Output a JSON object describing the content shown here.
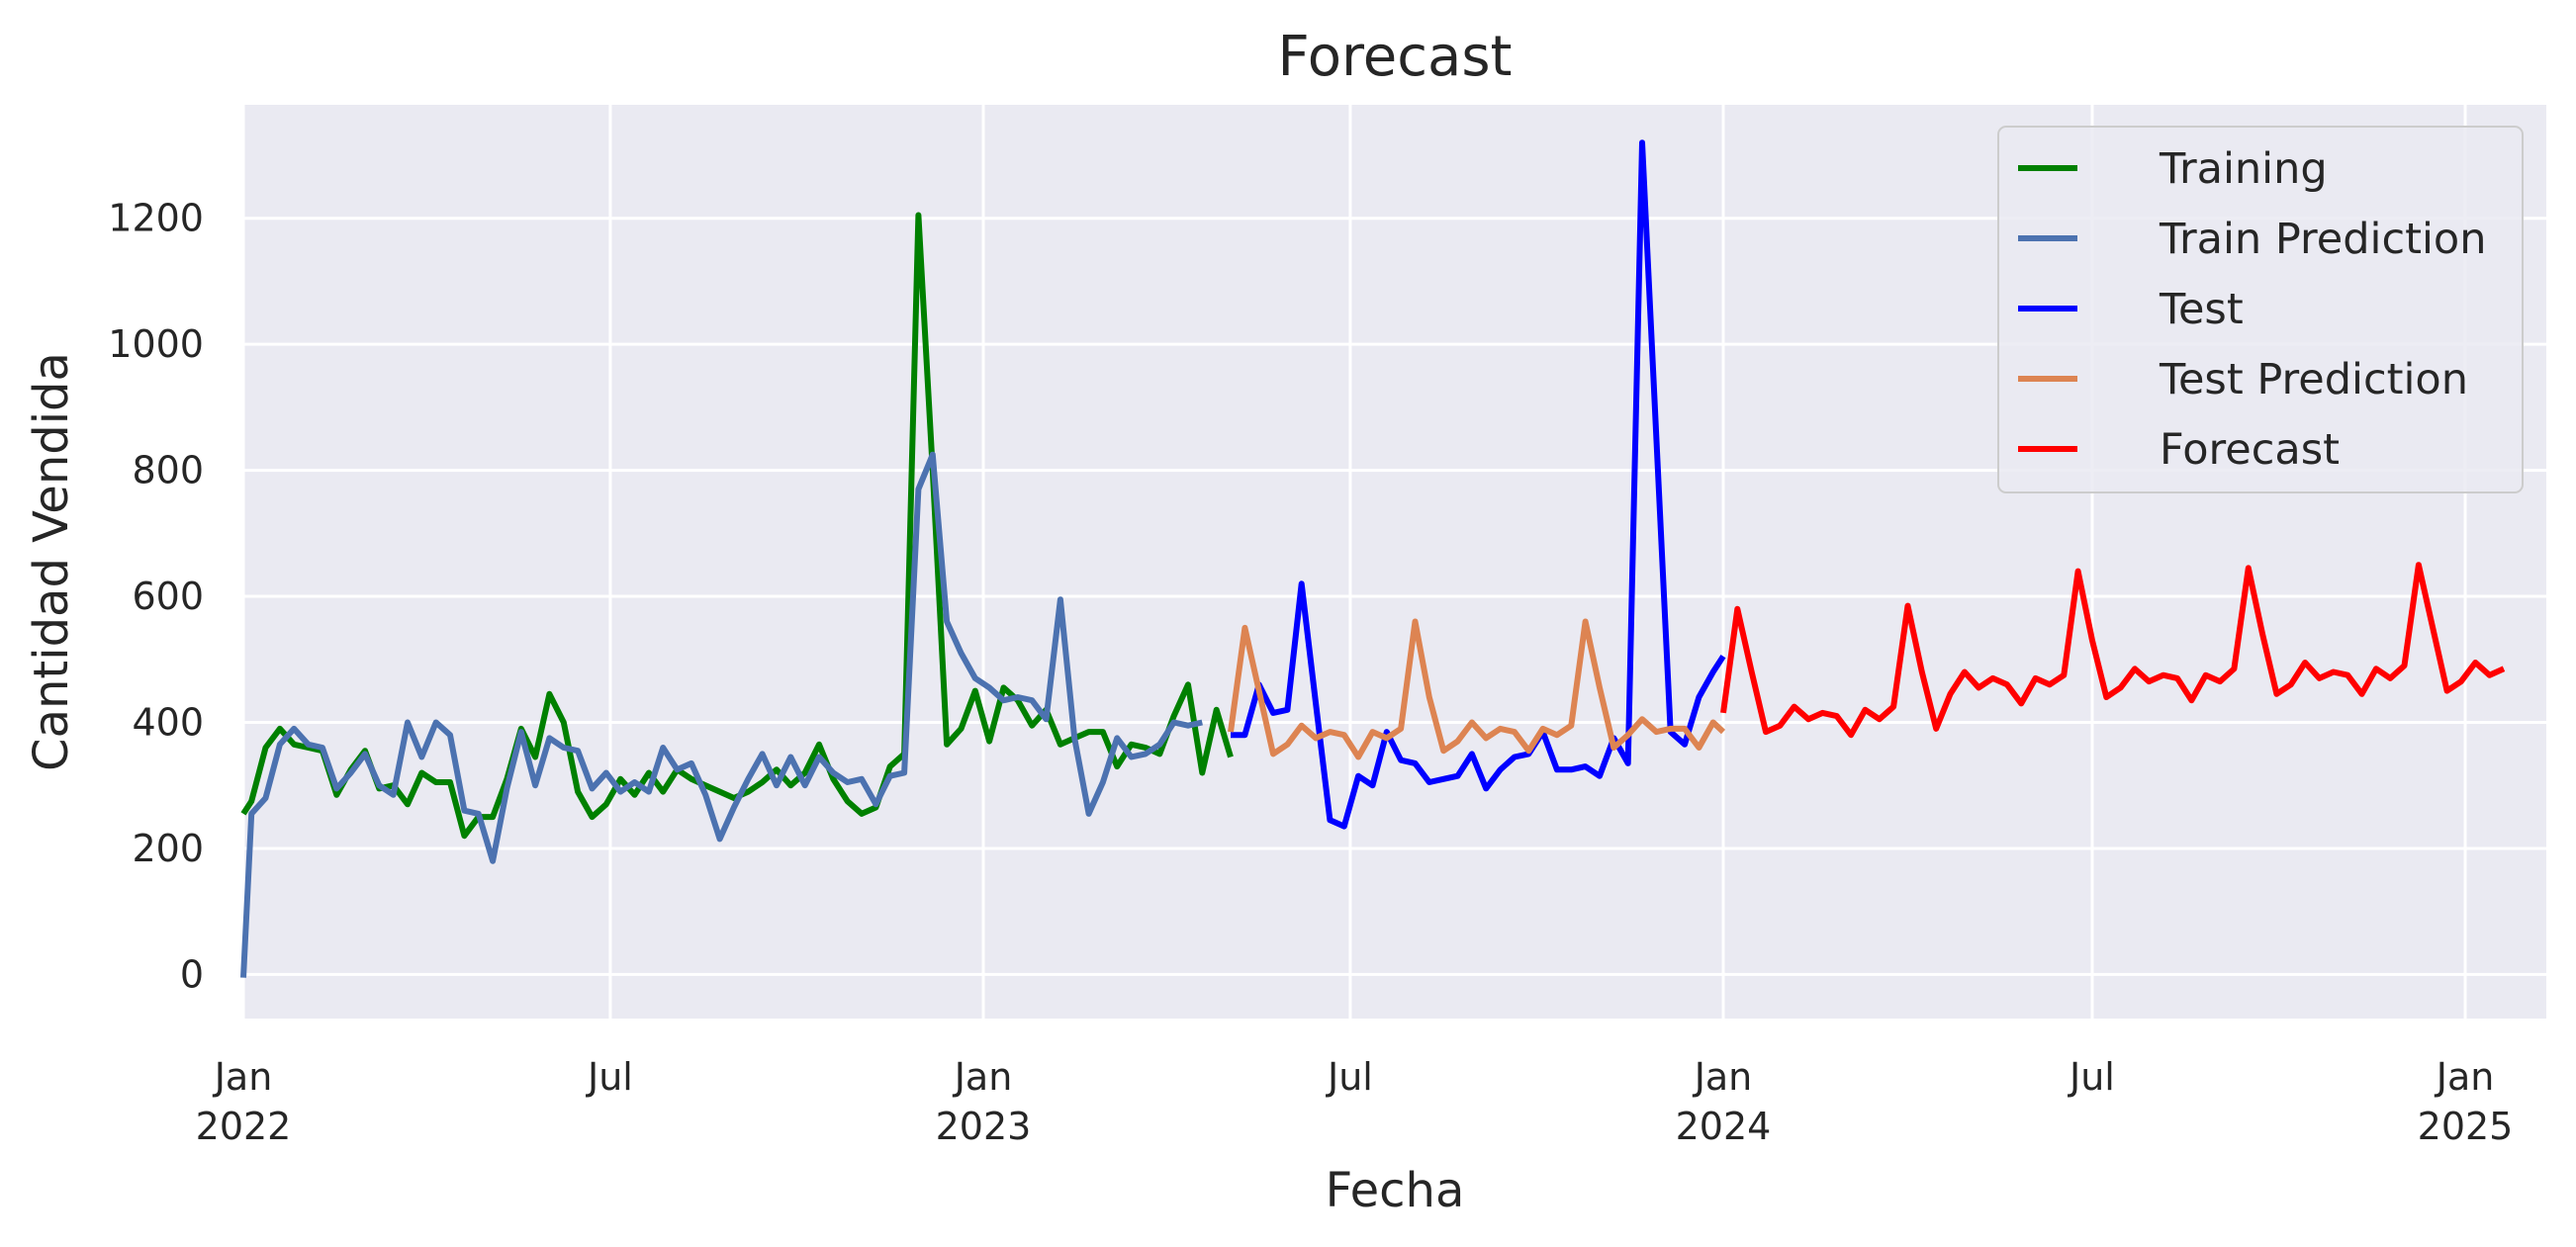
{
  "chart_data": {
    "type": "line",
    "title": "Forecast",
    "xlabel": "Fecha",
    "ylabel": "Cantidad Vendida",
    "xlim": [
      "2022-01-01",
      "2025-02-10"
    ],
    "ylim": [
      -70,
      1380
    ],
    "grid": true,
    "legend_position": "top-right",
    "y_ticks": [
      0,
      200,
      400,
      600,
      800,
      1000,
      1200
    ],
    "x_ticks": [
      {
        "date": "2022-01-01",
        "label": "Jan",
        "year": "2022"
      },
      {
        "date": "2022-07-01",
        "label": "Jul",
        "year": ""
      },
      {
        "date": "2023-01-01",
        "label": "Jan",
        "year": "2023"
      },
      {
        "date": "2023-07-01",
        "label": "Jul",
        "year": ""
      },
      {
        "date": "2024-01-01",
        "label": "Jan",
        "year": "2024"
      },
      {
        "date": "2024-07-01",
        "label": "Jul",
        "year": ""
      },
      {
        "date": "2025-01-01",
        "label": "Jan",
        "year": "2025"
      }
    ],
    "colors": {
      "plot_background": "#eaeaf2",
      "grid": "#ffffff",
      "text": "#262626"
    },
    "series": [
      {
        "name": "Training",
        "color": "#008000",
        "points": [
          [
            "2022-01-01",
            255
          ],
          [
            "2022-01-05",
            275
          ],
          [
            "2022-01-12",
            360
          ],
          [
            "2022-01-19",
            390
          ],
          [
            "2022-01-26",
            365
          ],
          [
            "2022-02-02",
            360
          ],
          [
            "2022-02-09",
            355
          ],
          [
            "2022-02-16",
            285
          ],
          [
            "2022-02-23",
            325
          ],
          [
            "2022-03-02",
            355
          ],
          [
            "2022-03-09",
            295
          ],
          [
            "2022-03-16",
            300
          ],
          [
            "2022-03-23",
            270
          ],
          [
            "2022-03-30",
            320
          ],
          [
            "2022-04-06",
            305
          ],
          [
            "2022-04-13",
            305
          ],
          [
            "2022-04-20",
            220
          ],
          [
            "2022-04-27",
            250
          ],
          [
            "2022-05-04",
            250
          ],
          [
            "2022-05-11",
            310
          ],
          [
            "2022-05-18",
            390
          ],
          [
            "2022-05-25",
            345
          ],
          [
            "2022-06-01",
            445
          ],
          [
            "2022-06-08",
            400
          ],
          [
            "2022-06-15",
            290
          ],
          [
            "2022-06-22",
            250
          ],
          [
            "2022-06-29",
            270
          ],
          [
            "2022-07-06",
            310
          ],
          [
            "2022-07-13",
            285
          ],
          [
            "2022-07-20",
            320
          ],
          [
            "2022-07-27",
            290
          ],
          [
            "2022-08-03",
            325
          ],
          [
            "2022-08-10",
            310
          ],
          [
            "2022-08-17",
            300
          ],
          [
            "2022-08-24",
            290
          ],
          [
            "2022-08-31",
            280
          ],
          [
            "2022-09-07",
            290
          ],
          [
            "2022-09-14",
            305
          ],
          [
            "2022-09-21",
            325
          ],
          [
            "2022-09-28",
            300
          ],
          [
            "2022-10-05",
            320
          ],
          [
            "2022-10-12",
            365
          ],
          [
            "2022-10-19",
            310
          ],
          [
            "2022-10-26",
            275
          ],
          [
            "2022-11-02",
            255
          ],
          [
            "2022-11-09",
            265
          ],
          [
            "2022-11-16",
            330
          ],
          [
            "2022-11-23",
            350
          ],
          [
            "2022-11-30",
            1205
          ],
          [
            "2022-12-07",
            800
          ],
          [
            "2022-12-14",
            365
          ],
          [
            "2022-12-21",
            390
          ],
          [
            "2022-12-28",
            450
          ],
          [
            "2023-01-04",
            370
          ],
          [
            "2023-01-11",
            455
          ],
          [
            "2023-01-18",
            435
          ],
          [
            "2023-01-25",
            395
          ],
          [
            "2023-02-01",
            420
          ],
          [
            "2023-02-08",
            365
          ],
          [
            "2023-02-15",
            375
          ],
          [
            "2023-02-22",
            385
          ],
          [
            "2023-03-01",
            385
          ],
          [
            "2023-03-08",
            330
          ],
          [
            "2023-03-15",
            365
          ],
          [
            "2023-03-22",
            360
          ],
          [
            "2023-03-29",
            350
          ],
          [
            "2023-04-05",
            410
          ],
          [
            "2023-04-12",
            460
          ],
          [
            "2023-04-19",
            320
          ],
          [
            "2023-04-26",
            420
          ],
          [
            "2023-05-03",
            345
          ]
        ]
      },
      {
        "name": "Train Prediction",
        "color": "#4c72b0",
        "points": [
          [
            "2022-01-01",
            -5
          ],
          [
            "2022-01-05",
            255
          ],
          [
            "2022-01-12",
            280
          ],
          [
            "2022-01-19",
            365
          ],
          [
            "2022-01-26",
            390
          ],
          [
            "2022-02-02",
            365
          ],
          [
            "2022-02-09",
            360
          ],
          [
            "2022-02-16",
            295
          ],
          [
            "2022-02-23",
            320
          ],
          [
            "2022-03-02",
            350
          ],
          [
            "2022-03-09",
            300
          ],
          [
            "2022-03-16",
            285
          ],
          [
            "2022-03-23",
            400
          ],
          [
            "2022-03-30",
            345
          ],
          [
            "2022-04-06",
            400
          ],
          [
            "2022-04-13",
            380
          ],
          [
            "2022-04-20",
            260
          ],
          [
            "2022-04-27",
            255
          ],
          [
            "2022-05-04",
            180
          ],
          [
            "2022-05-11",
            295
          ],
          [
            "2022-05-18",
            385
          ],
          [
            "2022-05-25",
            300
          ],
          [
            "2022-06-01",
            375
          ],
          [
            "2022-06-08",
            360
          ],
          [
            "2022-06-15",
            355
          ],
          [
            "2022-06-22",
            295
          ],
          [
            "2022-06-29",
            320
          ],
          [
            "2022-07-06",
            290
          ],
          [
            "2022-07-13",
            305
          ],
          [
            "2022-07-20",
            290
          ],
          [
            "2022-07-27",
            360
          ],
          [
            "2022-08-03",
            325
          ],
          [
            "2022-08-10",
            335
          ],
          [
            "2022-08-17",
            285
          ],
          [
            "2022-08-24",
            215
          ],
          [
            "2022-08-31",
            265
          ],
          [
            "2022-09-07",
            310
          ],
          [
            "2022-09-14",
            350
          ],
          [
            "2022-09-21",
            300
          ],
          [
            "2022-09-28",
            345
          ],
          [
            "2022-10-05",
            300
          ],
          [
            "2022-10-12",
            345
          ],
          [
            "2022-10-19",
            320
          ],
          [
            "2022-10-26",
            305
          ],
          [
            "2022-11-02",
            310
          ],
          [
            "2022-11-09",
            270
          ],
          [
            "2022-11-16",
            315
          ],
          [
            "2022-11-23",
            320
          ],
          [
            "2022-11-30",
            770
          ],
          [
            "2022-12-07",
            825
          ],
          [
            "2022-12-14",
            560
          ],
          [
            "2022-12-21",
            510
          ],
          [
            "2022-12-28",
            470
          ],
          [
            "2023-01-04",
            455
          ],
          [
            "2023-01-11",
            435
          ],
          [
            "2023-01-18",
            440
          ],
          [
            "2023-01-25",
            435
          ],
          [
            "2023-02-01",
            405
          ],
          [
            "2023-02-08",
            595
          ],
          [
            "2023-02-15",
            375
          ],
          [
            "2023-02-22",
            255
          ],
          [
            "2023-03-01",
            305
          ],
          [
            "2023-03-08",
            375
          ],
          [
            "2023-03-15",
            345
          ],
          [
            "2023-03-22",
            350
          ],
          [
            "2023-03-29",
            365
          ],
          [
            "2023-04-05",
            400
          ],
          [
            "2023-04-12",
            395
          ],
          [
            "2023-04-19",
            400
          ]
        ]
      },
      {
        "name": "Test",
        "color": "#0000ff",
        "points": [
          [
            "2023-05-03",
            380
          ],
          [
            "2023-05-10",
            380
          ],
          [
            "2023-05-17",
            460
          ],
          [
            "2023-05-24",
            415
          ],
          [
            "2023-05-31",
            420
          ],
          [
            "2023-06-07",
            620
          ],
          [
            "2023-06-14",
            430
          ],
          [
            "2023-06-21",
            245
          ],
          [
            "2023-06-28",
            235
          ],
          [
            "2023-07-05",
            315
          ],
          [
            "2023-07-12",
            300
          ],
          [
            "2023-07-19",
            385
          ],
          [
            "2023-07-26",
            340
          ],
          [
            "2023-08-02",
            335
          ],
          [
            "2023-08-09",
            305
          ],
          [
            "2023-08-16",
            310
          ],
          [
            "2023-08-23",
            315
          ],
          [
            "2023-08-30",
            350
          ],
          [
            "2023-09-06",
            295
          ],
          [
            "2023-09-13",
            325
          ],
          [
            "2023-09-20",
            345
          ],
          [
            "2023-09-27",
            350
          ],
          [
            "2023-10-04",
            385
          ],
          [
            "2023-10-11",
            325
          ],
          [
            "2023-10-18",
            325
          ],
          [
            "2023-10-25",
            330
          ],
          [
            "2023-11-01",
            315
          ],
          [
            "2023-11-08",
            375
          ],
          [
            "2023-11-15",
            335
          ],
          [
            "2023-11-22",
            1320
          ],
          [
            "2023-11-29",
            850
          ],
          [
            "2023-12-06",
            385
          ],
          [
            "2023-12-13",
            365
          ],
          [
            "2023-12-20",
            440
          ],
          [
            "2023-12-27",
            480
          ],
          [
            "2024-01-01",
            505
          ]
        ]
      },
      {
        "name": "Test Prediction",
        "color": "#dd8452",
        "points": [
          [
            "2023-05-03",
            385
          ],
          [
            "2023-05-10",
            550
          ],
          [
            "2023-05-17",
            450
          ],
          [
            "2023-05-24",
            350
          ],
          [
            "2023-05-31",
            365
          ],
          [
            "2023-06-07",
            395
          ],
          [
            "2023-06-14",
            375
          ],
          [
            "2023-06-21",
            385
          ],
          [
            "2023-06-28",
            380
          ],
          [
            "2023-07-05",
            345
          ],
          [
            "2023-07-12",
            385
          ],
          [
            "2023-07-19",
            375
          ],
          [
            "2023-07-26",
            390
          ],
          [
            "2023-08-02",
            560
          ],
          [
            "2023-08-09",
            440
          ],
          [
            "2023-08-16",
            355
          ],
          [
            "2023-08-23",
            370
          ],
          [
            "2023-08-30",
            400
          ],
          [
            "2023-09-06",
            375
          ],
          [
            "2023-09-13",
            390
          ],
          [
            "2023-09-20",
            385
          ],
          [
            "2023-09-27",
            355
          ],
          [
            "2023-10-04",
            390
          ],
          [
            "2023-10-11",
            380
          ],
          [
            "2023-10-18",
            395
          ],
          [
            "2023-10-25",
            560
          ],
          [
            "2023-11-01",
            455
          ],
          [
            "2023-11-08",
            360
          ],
          [
            "2023-11-15",
            380
          ],
          [
            "2023-11-22",
            405
          ],
          [
            "2023-11-29",
            385
          ],
          [
            "2023-12-06",
            390
          ],
          [
            "2023-12-13",
            390
          ],
          [
            "2023-12-20",
            360
          ],
          [
            "2023-12-27",
            400
          ],
          [
            "2024-01-01",
            385
          ]
        ]
      },
      {
        "name": "Forecast",
        "color": "#ff0000",
        "points": [
          [
            "2024-01-01",
            415
          ],
          [
            "2024-01-08",
            580
          ],
          [
            "2024-01-15",
            480
          ],
          [
            "2024-01-22",
            385
          ],
          [
            "2024-01-29",
            395
          ],
          [
            "2024-02-05",
            425
          ],
          [
            "2024-02-12",
            405
          ],
          [
            "2024-02-19",
            415
          ],
          [
            "2024-02-26",
            410
          ],
          [
            "2024-03-04",
            380
          ],
          [
            "2024-03-11",
            420
          ],
          [
            "2024-03-18",
            405
          ],
          [
            "2024-03-25",
            425
          ],
          [
            "2024-04-01",
            585
          ],
          [
            "2024-04-08",
            480
          ],
          [
            "2024-04-15",
            390
          ],
          [
            "2024-04-22",
            445
          ],
          [
            "2024-04-29",
            480
          ],
          [
            "2024-05-06",
            455
          ],
          [
            "2024-05-13",
            470
          ],
          [
            "2024-05-20",
            460
          ],
          [
            "2024-05-27",
            430
          ],
          [
            "2024-06-03",
            470
          ],
          [
            "2024-06-10",
            460
          ],
          [
            "2024-06-17",
            475
          ],
          [
            "2024-06-24",
            640
          ],
          [
            "2024-07-01",
            530
          ],
          [
            "2024-07-08",
            440
          ],
          [
            "2024-07-15",
            455
          ],
          [
            "2024-07-22",
            485
          ],
          [
            "2024-07-29",
            465
          ],
          [
            "2024-08-05",
            475
          ],
          [
            "2024-08-12",
            470
          ],
          [
            "2024-08-19",
            435
          ],
          [
            "2024-08-26",
            475
          ],
          [
            "2024-09-02",
            465
          ],
          [
            "2024-09-09",
            485
          ],
          [
            "2024-09-16",
            645
          ],
          [
            "2024-09-23",
            540
          ],
          [
            "2024-09-30",
            445
          ],
          [
            "2024-10-07",
            460
          ],
          [
            "2024-10-14",
            495
          ],
          [
            "2024-10-21",
            470
          ],
          [
            "2024-10-28",
            480
          ],
          [
            "2024-11-04",
            475
          ],
          [
            "2024-11-11",
            445
          ],
          [
            "2024-11-18",
            485
          ],
          [
            "2024-11-25",
            470
          ],
          [
            "2024-12-02",
            490
          ],
          [
            "2024-12-09",
            650
          ],
          [
            "2024-12-16",
            550
          ],
          [
            "2024-12-23",
            450
          ],
          [
            "2024-12-30",
            465
          ],
          [
            "2025-01-06",
            495
          ],
          [
            "2025-01-13",
            475
          ],
          [
            "2025-01-20",
            485
          ]
        ]
      }
    ]
  }
}
